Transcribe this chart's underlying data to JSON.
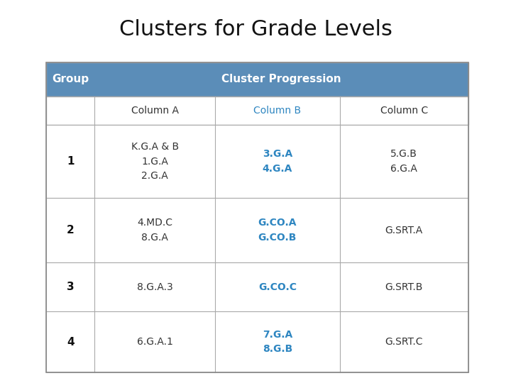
{
  "title": "Clusters for Grade Levels",
  "title_fontsize": 22,
  "header_bg_color": "#5B8DB8",
  "header_text_color": "#FFFFFF",
  "col_b_text_color": "#2E86C1",
  "normal_text_color": "#333333",
  "group_text_color": "#111111",
  "border_color": "#AAAAAA",
  "rows": [
    {
      "group": "1",
      "col_a": "K.G.A & B\n1.G.A\n2.G.A",
      "col_b": "3.G.A\n4.G.A",
      "col_c": "5.G.B\n6.G.A"
    },
    {
      "group": "2",
      "col_a": "4.MD.C\n8.G.A",
      "col_b": "G.CO.A\nG.CO.B",
      "col_c": "G.SRT.A"
    },
    {
      "group": "3",
      "col_a": "8.G.A.3",
      "col_b": "G.CO.C",
      "col_c": "G.SRT.B"
    },
    {
      "group": "4",
      "col_a": "6.G.A.1",
      "col_b": "7.G.A\n8.G.B",
      "col_c": "G.SRT.C"
    }
  ]
}
